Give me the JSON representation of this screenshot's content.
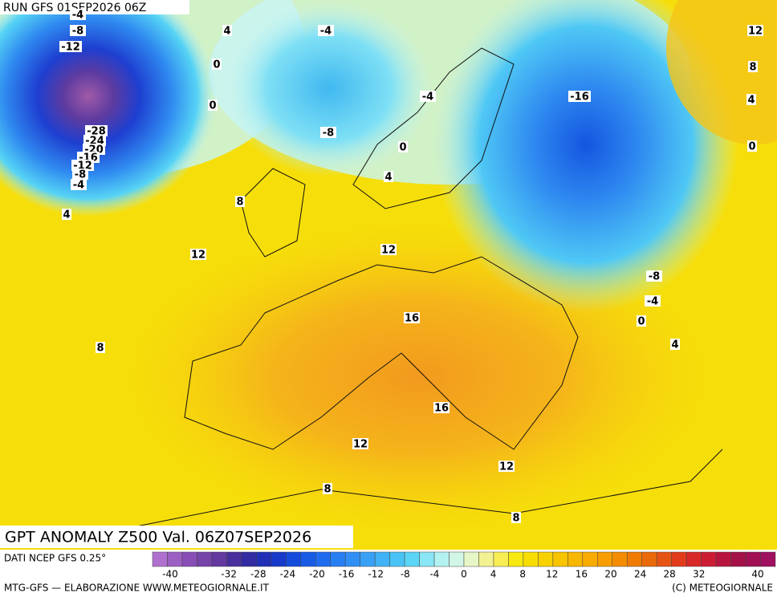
{
  "header": {
    "run": "RUN GFS 01SEP2026 06Z"
  },
  "map": {
    "title": "GPT ANOMALY Z500 Val. 06Z07SEP2026",
    "contour_labels": [
      "-4",
      "-8",
      "-12",
      "4",
      "-4",
      "0",
      "0",
      "-4",
      "-16",
      "-8",
      "12",
      "8",
      "4",
      "0",
      "-28",
      "-24",
      "-20",
      "-16",
      "-12",
      "-8",
      "-4",
      "0",
      "4",
      "8",
      "4",
      "12",
      "12",
      "-8",
      "-4",
      "0",
      "16",
      "4",
      "8",
      "16",
      "12",
      "12",
      "8",
      "8"
    ]
  },
  "footer": {
    "source": "DATI NCEP GFS 0.25°",
    "credit": "MTG-GFS — ELABORAZIONE WWW.METEOGIORNALE.IT",
    "copyright": "(C) METEOGIORNALE"
  },
  "colorbar": {
    "labels": [
      -40,
      -32,
      -28,
      -24,
      -20,
      -16,
      -12,
      -8,
      -4,
      0,
      4,
      8,
      12,
      16,
      20,
      24,
      28,
      32,
      40
    ]
  }
}
